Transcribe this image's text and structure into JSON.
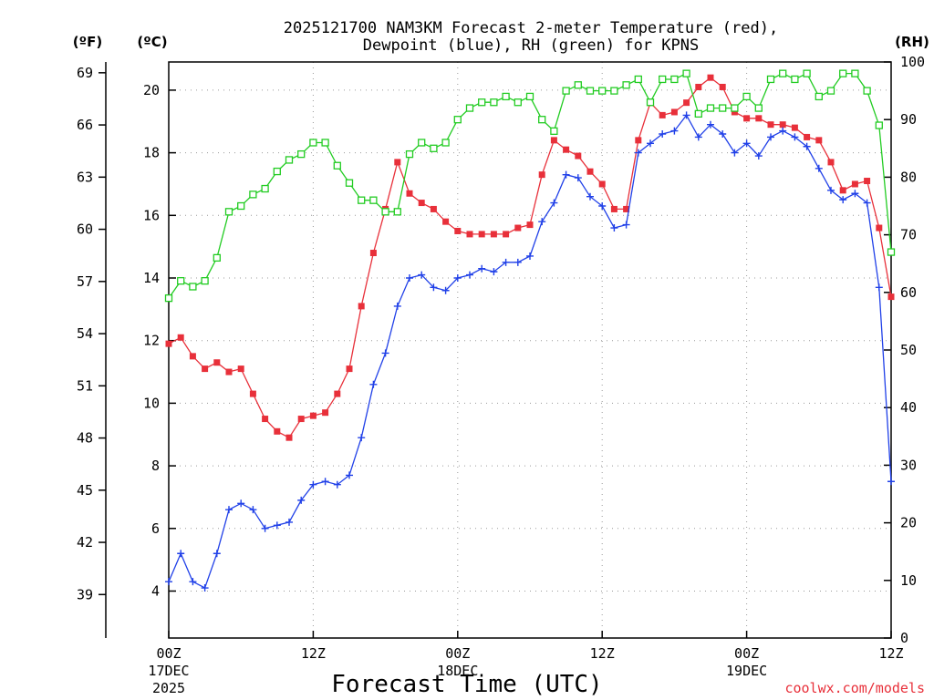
{
  "chart_data": {
    "type": "line",
    "title": [
      "2025121700 NAM3KM Forecast 2-meter Temperature (red),",
      "Dewpoint (blue), RH (green) for KPNS"
    ],
    "xlabel": "Forecast Time (UTC)",
    "credit": "coolwx.com/models",
    "units": {
      "fahrenheit": "(ºF)",
      "celsius": "(ºC)",
      "rh": "(RH)"
    },
    "x_range_hours": [
      0,
      60
    ],
    "x_ticks": [
      {
        "hour": 0,
        "lines": [
          "00Z",
          "17DEC",
          "2025"
        ]
      },
      {
        "hour": 12,
        "lines": [
          "12Z"
        ]
      },
      {
        "hour": 24,
        "lines": [
          "00Z",
          "18DEC"
        ]
      },
      {
        "hour": 36,
        "lines": [
          "12Z"
        ]
      },
      {
        "hour": 48,
        "lines": [
          "00Z",
          "19DEC"
        ]
      },
      {
        "hour": 60,
        "lines": [
          "12Z"
        ]
      }
    ],
    "ylim_celsius": [
      2.5,
      20.9
    ],
    "ylim_rh": [
      0,
      100
    ],
    "y_ticks_celsius": [
      4,
      6,
      8,
      10,
      12,
      14,
      16,
      18,
      20
    ],
    "y_ticks_fahrenheit": [
      39,
      42,
      45,
      48,
      51,
      54,
      57,
      60,
      63,
      66,
      69
    ],
    "y_ticks_rh": [
      0,
      10,
      20,
      30,
      40,
      50,
      60,
      70,
      80,
      90,
      100
    ],
    "series": [
      {
        "name": "Temperature",
        "axis": "celsius",
        "color": "#e8303a",
        "marker": "filled-square",
        "hours": [
          0,
          1,
          2,
          3,
          4,
          5,
          6,
          7,
          8,
          9,
          10,
          11,
          12,
          13,
          14,
          15,
          16,
          17,
          18,
          19,
          20,
          21,
          22,
          23,
          24,
          25,
          26,
          27,
          28,
          29,
          30,
          31,
          32,
          33,
          34,
          35,
          36,
          37,
          38,
          39,
          40,
          41,
          42,
          43,
          44,
          45,
          46,
          47,
          48,
          49,
          50,
          51,
          52,
          53,
          54,
          55,
          56,
          57,
          58,
          59,
          60
        ],
        "values": [
          11.9,
          12.1,
          11.5,
          11.1,
          11.3,
          11.0,
          11.1,
          10.3,
          9.5,
          9.1,
          8.9,
          9.5,
          9.6,
          9.7,
          10.3,
          11.1,
          13.1,
          14.8,
          16.2,
          17.7,
          16.7,
          16.4,
          16.2,
          15.8,
          15.5,
          15.4,
          15.4,
          15.4,
          15.4,
          15.6,
          15.7,
          17.3,
          18.4,
          18.1,
          17.9,
          17.4,
          17.0,
          16.2,
          16.2,
          18.4,
          19.6,
          19.2,
          19.3,
          19.6,
          20.1,
          20.4,
          20.1,
          19.3,
          19.1,
          19.1,
          18.9,
          18.9,
          18.8,
          18.5,
          18.4,
          17.7,
          16.8,
          17.0,
          17.1,
          15.6,
          13.4
        ]
      },
      {
        "name": "Dewpoint",
        "axis": "celsius",
        "color": "#2040e8",
        "marker": "plus",
        "hours": [
          0,
          1,
          2,
          3,
          4,
          5,
          6,
          7,
          8,
          9,
          10,
          11,
          12,
          13,
          14,
          15,
          16,
          17,
          18,
          19,
          20,
          21,
          22,
          23,
          24,
          25,
          26,
          27,
          28,
          29,
          30,
          31,
          32,
          33,
          34,
          35,
          36,
          37,
          38,
          39,
          40,
          41,
          42,
          43,
          44,
          45,
          46,
          47,
          48,
          49,
          50,
          51,
          52,
          53,
          54,
          55,
          56,
          57,
          58,
          59,
          60
        ],
        "values": [
          4.3,
          5.2,
          4.3,
          4.1,
          5.2,
          6.6,
          6.8,
          6.6,
          6.0,
          6.1,
          6.2,
          6.9,
          7.4,
          7.5,
          7.4,
          7.7,
          8.9,
          10.6,
          11.6,
          13.1,
          14.0,
          14.1,
          13.7,
          13.6,
          14.0,
          14.1,
          14.3,
          14.2,
          14.5,
          14.5,
          14.7,
          15.8,
          16.4,
          17.3,
          17.2,
          16.6,
          16.3,
          15.6,
          15.7,
          18.0,
          18.3,
          18.6,
          18.7,
          19.2,
          18.5,
          18.9,
          18.6,
          18.0,
          18.3,
          17.9,
          18.5,
          18.7,
          18.5,
          18.2,
          17.5,
          16.8,
          16.5,
          16.7,
          16.4,
          13.7,
          7.5
        ]
      },
      {
        "name": "Relative Humidity",
        "axis": "rh",
        "color": "#22cc22",
        "marker": "open-square",
        "hours": [
          0,
          1,
          2,
          3,
          4,
          5,
          6,
          7,
          8,
          9,
          10,
          11,
          12,
          13,
          14,
          15,
          16,
          17,
          18,
          19,
          20,
          21,
          22,
          23,
          24,
          25,
          26,
          27,
          28,
          29,
          30,
          31,
          32,
          33,
          34,
          35,
          36,
          37,
          38,
          39,
          40,
          41,
          42,
          43,
          44,
          45,
          46,
          47,
          48,
          49,
          50,
          51,
          52,
          53,
          54,
          55,
          56,
          57,
          58,
          59,
          60
        ],
        "values": [
          59,
          62,
          61,
          62,
          66,
          74,
          75,
          77,
          78,
          81,
          83,
          84,
          86,
          86,
          82,
          79,
          76,
          76,
          74,
          74,
          84,
          86,
          85,
          86,
          90,
          92,
          93,
          93,
          94,
          93,
          94,
          90,
          88,
          95,
          96,
          95,
          95,
          95,
          96,
          97,
          93,
          97,
          97,
          98,
          91,
          92,
          92,
          92,
          94,
          92,
          97,
          98,
          97,
          98,
          94,
          95,
          98,
          98,
          95,
          89,
          67
        ]
      }
    ]
  }
}
